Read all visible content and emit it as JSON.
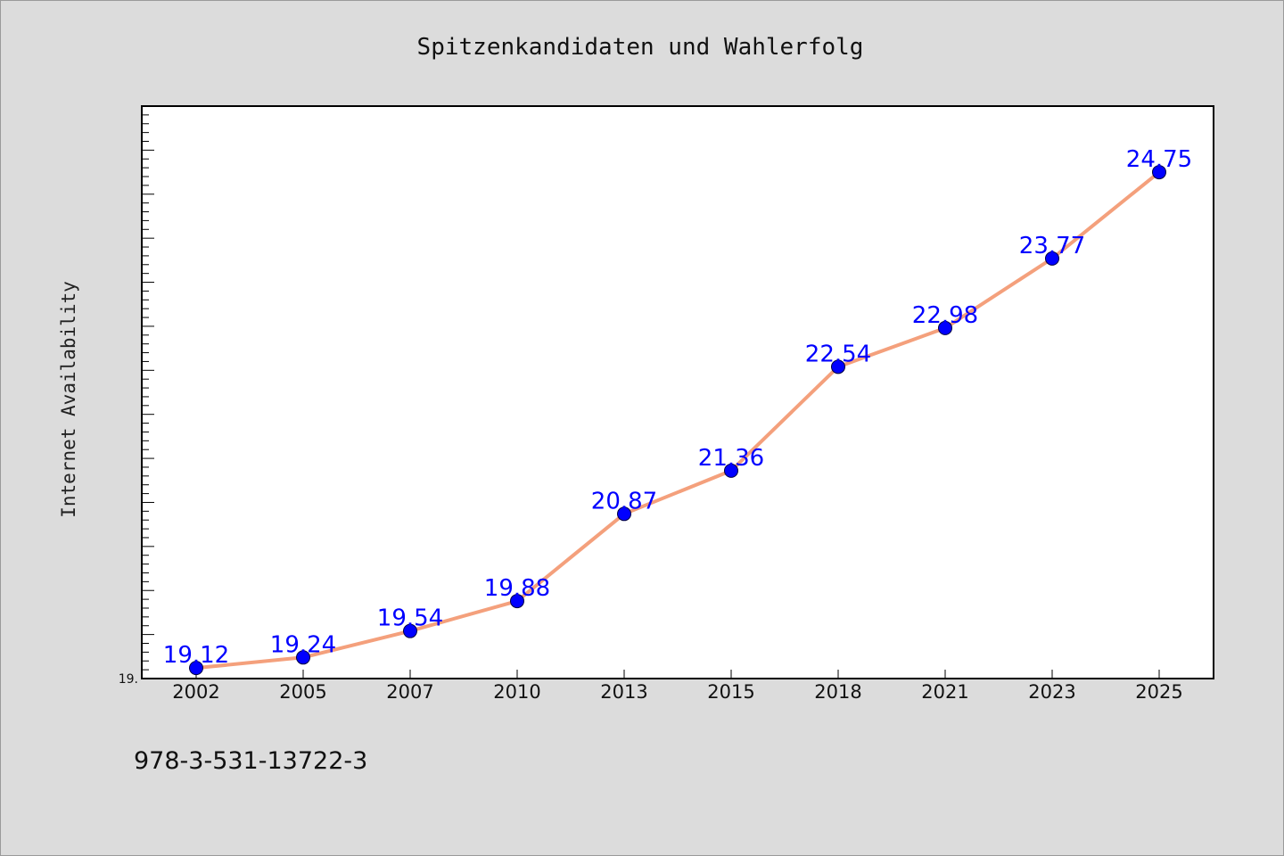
{
  "chart_data": {
    "type": "line",
    "title": "Spitzenkandidaten und Wahlerfolg",
    "xlabel": "",
    "ylabel": "Internet Availability",
    "categories": [
      "2002",
      "2005",
      "2007",
      "2010",
      "2013",
      "2015",
      "2018",
      "2021",
      "2023",
      "2025"
    ],
    "series": [
      {
        "values": [
          19.12,
          19.24,
          19.54,
          19.88,
          20.87,
          21.36,
          22.54,
          22.98,
          23.77,
          24.75
        ],
        "data_labels": [
          "19.12",
          "19.24",
          "19.54",
          "19.88",
          "20.87",
          "21.36",
          "22.54",
          "22.98",
          "23.77",
          "24.75"
        ]
      }
    ],
    "ylim": [
      19.0,
      25.5
    ],
    "ytick_labels": [
      "19."
    ],
    "grid": false,
    "legend": "none",
    "colors": {
      "line": "#f4a07c",
      "marker": "#0000ff",
      "data_label": "#0000ff"
    }
  },
  "footer": {
    "isbn": "978-3-531-13722-3"
  }
}
